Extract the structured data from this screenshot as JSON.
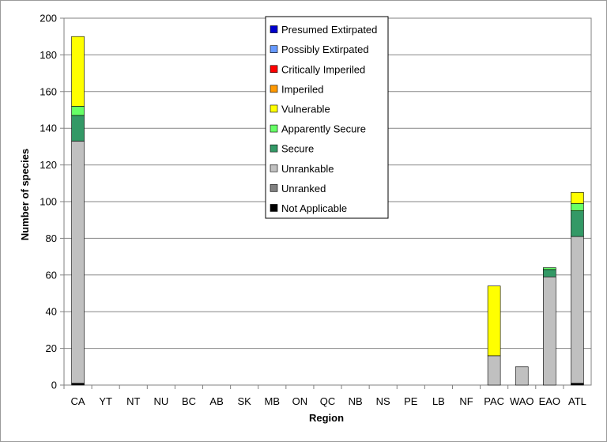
{
  "chart_data": {
    "type": "bar",
    "stacked": true,
    "xlabel": "Region",
    "ylabel": "Number of species",
    "ylim": [
      0,
      200
    ],
    "ytick_step": 20,
    "grid": true,
    "legend_placement": "top-center",
    "categories": [
      "CA",
      "YT",
      "NT",
      "NU",
      "BC",
      "AB",
      "SK",
      "MB",
      "ON",
      "QC",
      "NB",
      "NS",
      "PE",
      "LB",
      "NF",
      "PAC",
      "WAO",
      "EAO",
      "ATL"
    ],
    "series": [
      {
        "name": "Not Applicable",
        "color": "#000000",
        "values": [
          1,
          0,
          0,
          0,
          0,
          0,
          0,
          0,
          0,
          0,
          0,
          0,
          0,
          0,
          0,
          0,
          0,
          0,
          1
        ]
      },
      {
        "name": "Unranked",
        "color": "#808080",
        "values": [
          0,
          0,
          0,
          0,
          0,
          0,
          0,
          0,
          0,
          0,
          0,
          0,
          0,
          0,
          0,
          0,
          0,
          0,
          0
        ]
      },
      {
        "name": "Unrankable",
        "color": "#c0c0c0",
        "values": [
          132,
          0,
          0,
          0,
          0,
          0,
          0,
          0,
          0,
          0,
          0,
          0,
          0,
          0,
          0,
          16,
          10,
          59,
          80
        ]
      },
      {
        "name": "Secure",
        "color": "#339966",
        "values": [
          14,
          0,
          0,
          0,
          0,
          0,
          0,
          0,
          0,
          0,
          0,
          0,
          0,
          0,
          0,
          0,
          0,
          4,
          14
        ]
      },
      {
        "name": "Apparently Secure",
        "color": "#66ff66",
        "values": [
          5,
          0,
          0,
          0,
          0,
          0,
          0,
          0,
          0,
          0,
          0,
          0,
          0,
          0,
          0,
          0,
          0,
          1,
          4
        ]
      },
      {
        "name": "Vulnerable",
        "color": "#ffff00",
        "values": [
          38,
          0,
          0,
          0,
          0,
          0,
          0,
          0,
          0,
          0,
          0,
          0,
          0,
          0,
          0,
          38,
          0,
          0,
          6
        ]
      },
      {
        "name": "Imperiled",
        "color": "#ff9900",
        "values": [
          0,
          0,
          0,
          0,
          0,
          0,
          0,
          0,
          0,
          0,
          0,
          0,
          0,
          0,
          0,
          0,
          0,
          0,
          0
        ]
      },
      {
        "name": "Critically Imperiled",
        "color": "#ff0000",
        "values": [
          0,
          0,
          0,
          0,
          0,
          0,
          0,
          0,
          0,
          0,
          0,
          0,
          0,
          0,
          0,
          0,
          0,
          0,
          0
        ]
      },
      {
        "name": "Possibly Extirpated",
        "color": "#6699ff",
        "values": [
          0,
          0,
          0,
          0,
          0,
          0,
          0,
          0,
          0,
          0,
          0,
          0,
          0,
          0,
          0,
          0,
          0,
          0,
          0
        ]
      },
      {
        "name": "Presumed Extirpated",
        "color": "#0000cc",
        "values": [
          0,
          0,
          0,
          0,
          0,
          0,
          0,
          0,
          0,
          0,
          0,
          0,
          0,
          0,
          0,
          0,
          0,
          0,
          0
        ]
      }
    ]
  }
}
